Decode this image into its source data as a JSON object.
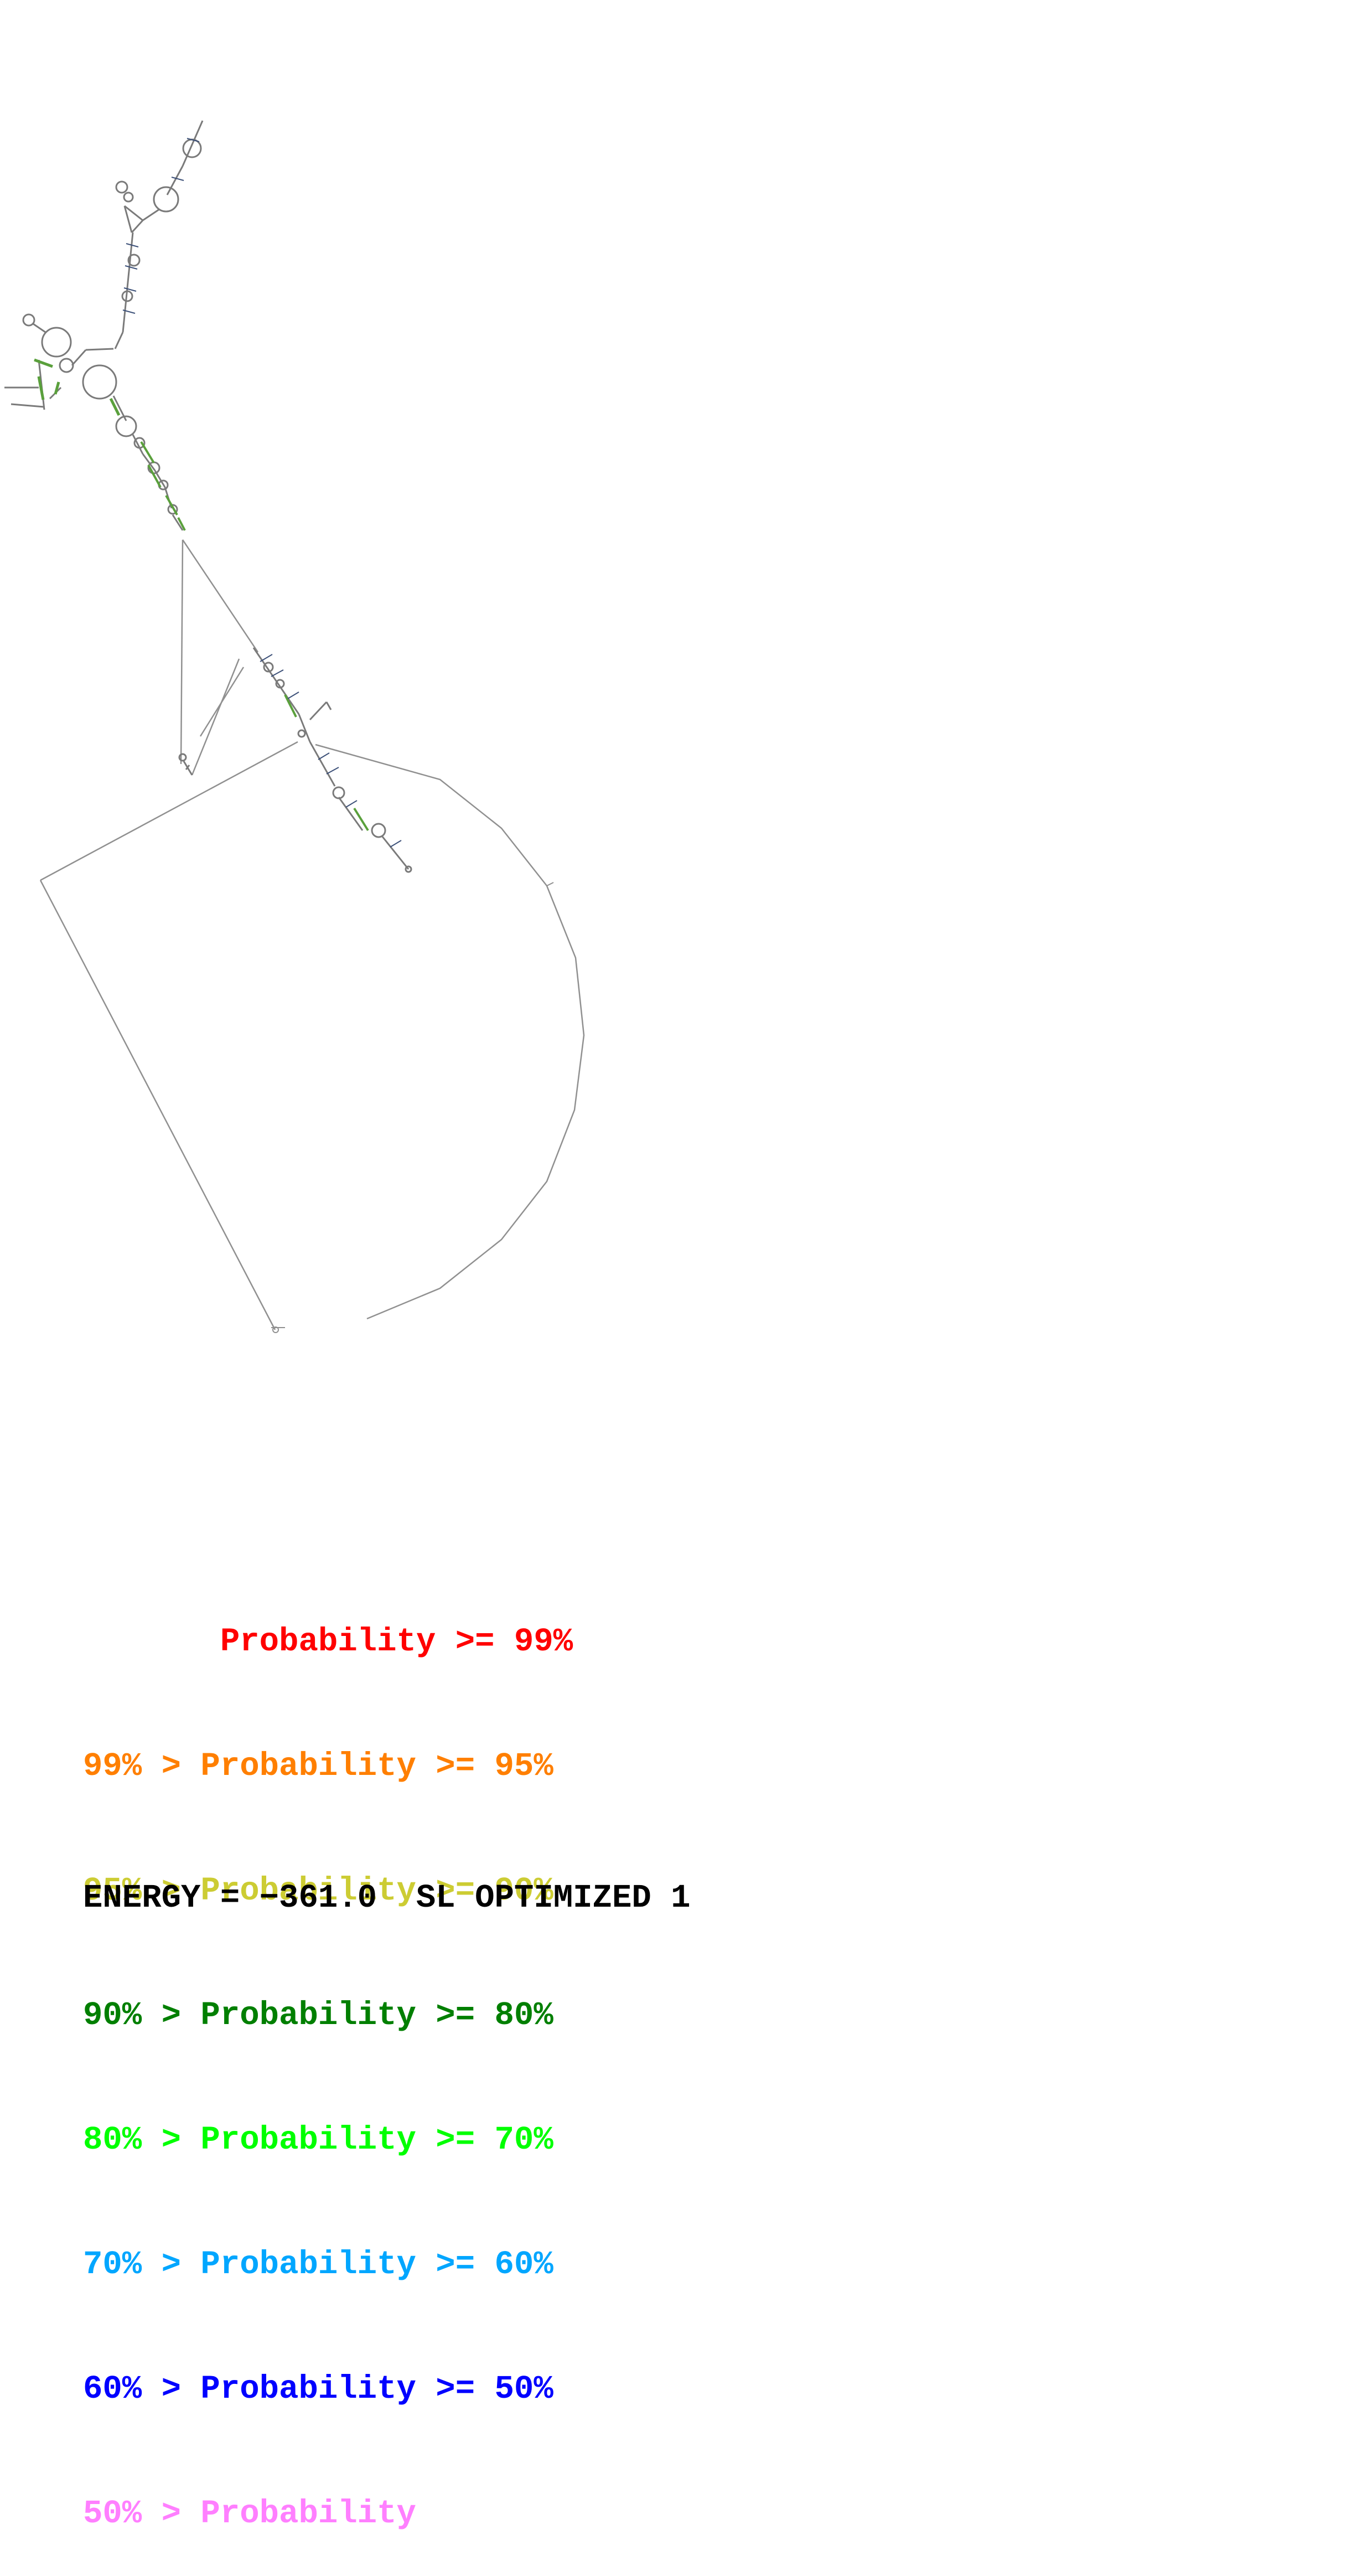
{
  "legend": [
    {
      "text": "       Probability >= 99%",
      "color": "#ff0000"
    },
    {
      "text": "99% > Probability >= 95%",
      "color": "#ff7f00"
    },
    {
      "text": "95% > Probability >= 90%",
      "color": "#cccc33"
    },
    {
      "text": "90% > Probability >= 80%",
      "color": "#007f00"
    },
    {
      "text": "80% > Probability >= 70%",
      "color": "#00ff00"
    },
    {
      "text": "70% > Probability >= 60%",
      "color": "#00a6ff"
    },
    {
      "text": "60% > Probability >= 50%",
      "color": "#0000ff"
    },
    {
      "text": "50% > Probability",
      "color": "#ff7fff"
    }
  ],
  "energy_line": "ENERGY = −361.0  SL OPTIMIZED 1",
  "colors": {
    "backbone": "#808080",
    "base_pair": "#3c5078",
    "high_probability_pair": "#5aa03c"
  }
}
